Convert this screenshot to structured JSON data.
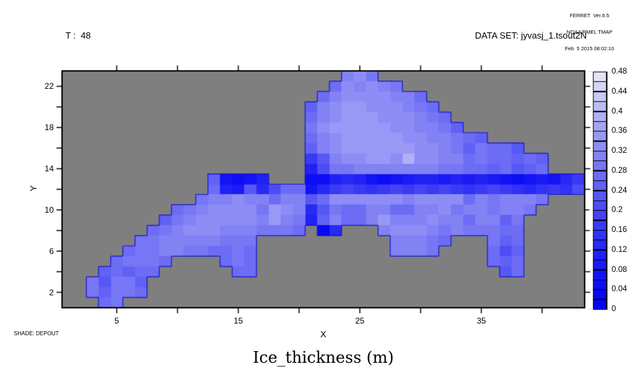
{
  "header": {
    "credit_line1": "FERRET  Ver.6.5",
    "credit_line2": "NOAA/PMEL TMAP",
    "credit_line3": "Feb  5 2015 08:02:10",
    "time_label": "T :  48",
    "dataset_label": "DATA SET: jyvasj_1.tsout2N"
  },
  "footer": {
    "shade_label": "SHADE: DEPOUT",
    "title": "Ice_thickness (m)"
  },
  "axes": {
    "x_label": "X",
    "y_label": "Y",
    "x_major_ticks": [
      5,
      15,
      25,
      35
    ],
    "x_minor_ticks": [
      10,
      20,
      30,
      40
    ],
    "y_major_ticks": [
      2,
      6,
      10,
      14,
      18,
      22
    ],
    "y_minor_ticks": [
      4,
      8,
      12,
      16,
      20
    ],
    "x_range": [
      0.5,
      43.5
    ],
    "y_range": [
      0.5,
      23.5
    ]
  },
  "colorbar": {
    "min": 0,
    "max": 0.48,
    "cell_step": 0.02,
    "label_step": 0.04,
    "labels_bottom_to_top": [
      "0",
      "0.04",
      "0.08",
      "0.12",
      "0.16",
      "0.2",
      "0.24",
      "0.28",
      "0.32",
      "0.36",
      "0.4",
      "0.44",
      "0.48"
    ]
  },
  "colors": {
    "land": "#7f7f7f",
    "boundary_line": "#1414cc",
    "frame": "#000000",
    "palette_low": "#0505f5",
    "palette_high": "#f0f0f5",
    "palette_gamma": 1.35
  },
  "chart_data": {
    "type": "heatmap",
    "title": "Ice_thickness (m)",
    "xlabel": "X",
    "ylabel": "Y",
    "x_range": [
      0.5,
      43.5
    ],
    "y_range": [
      0.5,
      23.5
    ],
    "value_range": [
      0,
      0.48
    ],
    "units": "m",
    "background": "land (no data)",
    "rows": [
      {
        "y": 23,
        "segments": [
          {
            "start": 24,
            "values": [
              0.3,
              0.32,
              0.28
            ]
          }
        ]
      },
      {
        "y": 22,
        "segments": [
          {
            "start": 23,
            "values": [
              0.26,
              0.32,
              0.3,
              0.32,
              0.3,
              0.28
            ]
          }
        ]
      },
      {
        "y": 21,
        "segments": [
          {
            "start": 22,
            "values": [
              0.26,
              0.3,
              0.32,
              0.32,
              0.32,
              0.32,
              0.3,
              0.3,
              0.26
            ]
          }
        ]
      },
      {
        "y": 20,
        "segments": [
          {
            "start": 21,
            "values": [
              0.24,
              0.3,
              0.32,
              0.34,
              0.34,
              0.32,
              0.32,
              0.32,
              0.3,
              0.28,
              0.26
            ]
          }
        ]
      },
      {
        "y": 19,
        "segments": [
          {
            "start": 21,
            "values": [
              0.26,
              0.3,
              0.32,
              0.34,
              0.34,
              0.34,
              0.32,
              0.32,
              0.32,
              0.3,
              0.28,
              0.26
            ]
          }
        ]
      },
      {
        "y": 18,
        "segments": [
          {
            "start": 21,
            "values": [
              0.28,
              0.32,
              0.34,
              0.34,
              0.34,
              0.34,
              0.34,
              0.32,
              0.32,
              0.3,
              0.3,
              0.28,
              0.24
            ]
          }
        ]
      },
      {
        "y": 17,
        "segments": [
          {
            "start": 21,
            "values": [
              0.26,
              0.3,
              0.32,
              0.34,
              0.34,
              0.34,
              0.34,
              0.34,
              0.32,
              0.32,
              0.3,
              0.3,
              0.28,
              0.26,
              0.24
            ]
          }
        ]
      },
      {
        "y": 16,
        "segments": [
          {
            "start": 21,
            "values": [
              0.24,
              0.3,
              0.32,
              0.34,
              0.34,
              0.34,
              0.34,
              0.34,
              0.34,
              0.32,
              0.32,
              0.3,
              0.28,
              0.24,
              0.28,
              0.26,
              0.26,
              0.22
            ]
          }
        ]
      },
      {
        "y": 15,
        "segments": [
          {
            "start": 21,
            "values": [
              0.16,
              0.22,
              0.3,
              0.32,
              0.32,
              0.34,
              0.34,
              0.32,
              0.38,
              0.32,
              0.32,
              0.3,
              0.3,
              0.26,
              0.28,
              0.26,
              0.26,
              0.24,
              0.26,
              0.24
            ]
          }
        ]
      },
      {
        "y": 14,
        "segments": [
          {
            "start": 21,
            "values": [
              0.1,
              0.2,
              0.28,
              0.28,
              0.3,
              0.3,
              0.3,
              0.3,
              0.3,
              0.3,
              0.3,
              0.28,
              0.28,
              0.26,
              0.26,
              0.24,
              0.26,
              0.22,
              0.24,
              0.26
            ]
          }
        ]
      },
      {
        "y": 13,
        "segments": [
          {
            "start": 13,
            "values": [
              0.24,
              0.06,
              0.04,
              0.06,
              0.1
            ]
          },
          {
            "start": 21,
            "values": [
              0.04,
              0.04,
              0.1,
              0.12,
              0.1,
              0.06,
              0.04,
              0.06,
              0.08,
              0.1,
              0.1,
              0.08,
              0.1,
              0.08,
              0.1,
              0.08,
              0.06,
              0.04,
              0.06,
              0.08,
              0.06,
              0.12,
              0.16
            ]
          }
        ]
      },
      {
        "y": 12,
        "segments": [
          {
            "start": 13,
            "values": [
              0.26,
              0.1,
              0.08,
              0.22,
              0.12,
              0.2,
              0.26,
              0.26
            ]
          },
          {
            "start": 21,
            "values": [
              0.06,
              0.12,
              0.16,
              0.18,
              0.16,
              0.14,
              0.16,
              0.18,
              0.16,
              0.18,
              0.16,
              0.18,
              0.16,
              0.14,
              0.16,
              0.18,
              0.16,
              0.14,
              0.12,
              0.14,
              0.16,
              0.14,
              0.2
            ]
          }
        ]
      },
      {
        "y": 11,
        "segments": [
          {
            "start": 12,
            "values": [
              0.28,
              0.3,
              0.3,
              0.32,
              0.3,
              0.3,
              0.26,
              0.3,
              0.3,
              0.22,
              0.26,
              0.32,
              0.32,
              0.32,
              0.32,
              0.32,
              0.32,
              0.3,
              0.32,
              0.32,
              0.32,
              0.32,
              0.26,
              0.3,
              0.28,
              0.3,
              0.3,
              0.3,
              0.28
            ]
          }
        ]
      },
      {
        "y": 10,
        "segments": [
          {
            "start": 10,
            "values": [
              0.26,
              0.28,
              0.3,
              0.32,
              0.32,
              0.32,
              0.32,
              0.28,
              0.34,
              0.32,
              0.3,
              0.12,
              0.22,
              0.28,
              0.26,
              0.26,
              0.3,
              0.3,
              0.26,
              0.26,
              0.3,
              0.3,
              0.32,
              0.28,
              0.3,
              0.3,
              0.28,
              0.3,
              0.3,
              0.28
            ]
          }
        ]
      },
      {
        "y": 9,
        "segments": [
          {
            "start": 9,
            "values": [
              0.24,
              0.28,
              0.3,
              0.32,
              0.32,
              0.32,
              0.32,
              0.32,
              0.3,
              0.34,
              0.3,
              0.28,
              0.1,
              0.24,
              0.3,
              0.26,
              0.26,
              0.3,
              0.34,
              0.3,
              0.3,
              0.3,
              0.32,
              0.3,
              0.3,
              0.26,
              0.3,
              0.3,
              0.24,
              0.28
            ]
          }
        ]
      },
      {
        "y": 8,
        "segments": [
          {
            "start": 8,
            "values": [
              0.26,
              0.28,
              0.3,
              0.32,
              0.32,
              0.32,
              0.3,
              0.3,
              0.3,
              0.28,
              0.28,
              0.28,
              0.26
            ]
          },
          {
            "start": 22,
            "values": [
              0.02,
              0.12
            ]
          },
          {
            "start": 27,
            "values": [
              0.3,
              0.32,
              0.32,
              0.32,
              0.3,
              0.28,
              0.3,
              0.28,
              0.28,
              0.28,
              0.26,
              0.26
            ]
          }
        ]
      },
      {
        "y": 7,
        "segments": [
          {
            "start": 7,
            "values": [
              0.28,
              0.28,
              0.3,
              0.3,
              0.3,
              0.3,
              0.3,
              0.28,
              0.28,
              0.28
            ]
          },
          {
            "start": 28,
            "values": [
              0.3,
              0.3,
              0.3,
              0.28,
              0.26
            ]
          },
          {
            "start": 36,
            "values": [
              0.28,
              0.24,
              0.26
            ]
          }
        ]
      },
      {
        "y": 6,
        "segments": [
          {
            "start": 6,
            "values": [
              0.26,
              0.28,
              0.28,
              0.3,
              0.3,
              0.28,
              0.28,
              0.26,
              0.26,
              0.28,
              0.26
            ]
          },
          {
            "start": 28,
            "values": [
              0.3,
              0.3,
              0.3,
              0.28
            ]
          },
          {
            "start": 36,
            "values": [
              0.26,
              0.2,
              0.24
            ]
          }
        ]
      },
      {
        "y": 5,
        "segments": [
          {
            "start": 5,
            "values": [
              0.26,
              0.28,
              0.28,
              0.28,
              0.26
            ]
          },
          {
            "start": 14,
            "values": [
              0.26,
              0.28,
              0.26
            ]
          },
          {
            "start": 36,
            "values": [
              0.26,
              0.24,
              0.26
            ]
          }
        ]
      },
      {
        "y": 4,
        "segments": [
          {
            "start": 4,
            "values": [
              0.24,
              0.26,
              0.24,
              0.26,
              0.26
            ]
          },
          {
            "start": 15,
            "values": [
              0.26,
              0.26
            ]
          },
          {
            "start": 37,
            "values": [
              0.22,
              0.26
            ]
          }
        ]
      },
      {
        "y": 3,
        "segments": [
          {
            "start": 3,
            "values": [
              0.28,
              0.22,
              0.28,
              0.28,
              0.24
            ]
          }
        ]
      },
      {
        "y": 2,
        "segments": [
          {
            "start": 3,
            "values": [
              0.28,
              0.24,
              0.28,
              0.28,
              0.26
            ]
          }
        ]
      },
      {
        "y": 1,
        "segments": [
          {
            "start": 4,
            "values": [
              0.26,
              0.28
            ]
          }
        ]
      }
    ]
  }
}
